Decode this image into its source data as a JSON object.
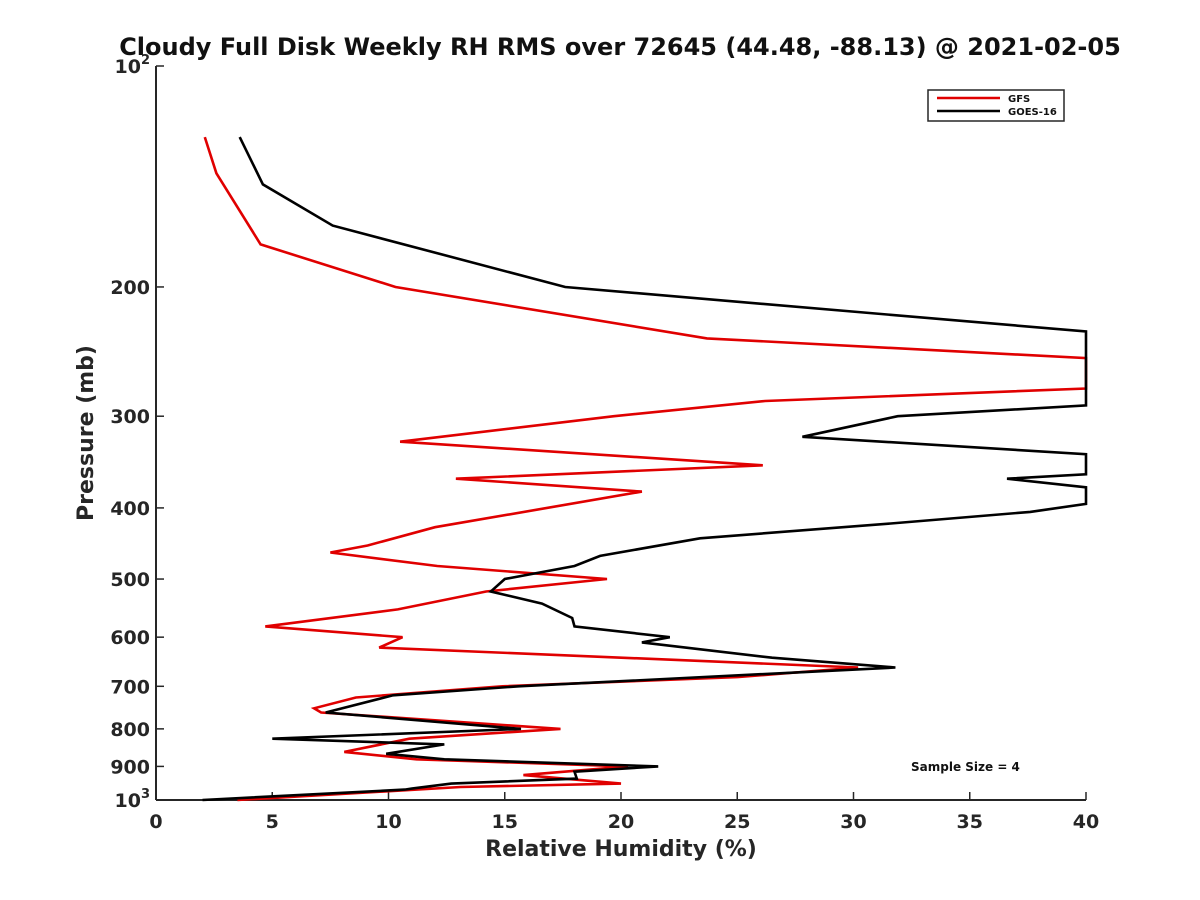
{
  "chart_data": {
    "type": "line",
    "title": "Cloudy Full Disk Weekly RH RMS over 72645 (44.48, -88.13) @ 2021-02-05",
    "xlabel": "Relative Humidity (%)",
    "ylabel": "Pressure (mb)",
    "xlim": [
      0,
      40
    ],
    "ylim": [
      100,
      1000
    ],
    "y_scale": "log",
    "y_reversed": true,
    "x_ticks": [
      "0",
      "5",
      "10",
      "15",
      "20",
      "25",
      "30",
      "35",
      "40"
    ],
    "y_ticks": [
      {
        "value": 100,
        "base": "10",
        "exp": "2"
      },
      {
        "value": 200,
        "label": "200"
      },
      {
        "value": 300,
        "label": "300"
      },
      {
        "value": 400,
        "label": "400"
      },
      {
        "value": 500,
        "label": "500"
      },
      {
        "value": 600,
        "label": "600"
      },
      {
        "value": 700,
        "label": "700"
      },
      {
        "value": 800,
        "label": "800"
      },
      {
        "value": 900,
        "label": "900"
      },
      {
        "value": 1000,
        "base": "10",
        "exp": "3"
      }
    ],
    "legend_position": "top-right",
    "grid": false,
    "annotation": "Sample Size = 4",
    "series": [
      {
        "name": "GFS",
        "color": "#e00000",
        "points": [
          [
            2.1,
            125
          ],
          [
            2.6,
            140
          ],
          [
            4.5,
            175
          ],
          [
            10.3,
            200
          ],
          [
            23.7,
            235
          ],
          [
            40,
            250
          ],
          [
            40,
            275
          ],
          [
            26.2,
            286
          ],
          [
            19.7,
            300
          ],
          [
            10.5,
            325
          ],
          [
            26.1,
            350
          ],
          [
            12.9,
            365
          ],
          [
            20.9,
            380
          ],
          [
            12.0,
            425
          ],
          [
            9.1,
            450
          ],
          [
            7.5,
            460
          ],
          [
            12.1,
            480
          ],
          [
            19.4,
            500
          ],
          [
            14.2,
            520
          ],
          [
            10.4,
            550
          ],
          [
            4.7,
            580
          ],
          [
            10.6,
            600
          ],
          [
            9.6,
            620
          ],
          [
            30.2,
            660
          ],
          [
            25.0,
            680
          ],
          [
            14.9,
            700
          ],
          [
            8.6,
            725
          ],
          [
            6.8,
            750
          ],
          [
            7.1,
            760
          ],
          [
            17.4,
            800
          ],
          [
            10.9,
            825
          ],
          [
            8.1,
            860
          ],
          [
            11.2,
            880
          ],
          [
            20.3,
            900
          ],
          [
            15.8,
            925
          ],
          [
            20.0,
            950
          ],
          [
            13.1,
            960
          ],
          [
            3.5,
            1000
          ]
        ]
      },
      {
        "name": "GOES-16",
        "color": "#000000",
        "points": [
          [
            3.6,
            125
          ],
          [
            4.6,
            145
          ],
          [
            7.6,
            165
          ],
          [
            17.6,
            200
          ],
          [
            40,
            230
          ],
          [
            40,
            290
          ],
          [
            31.9,
            300
          ],
          [
            27.8,
            320
          ],
          [
            40,
            338
          ],
          [
            40,
            360
          ],
          [
            36.6,
            365
          ],
          [
            40,
            375
          ],
          [
            40,
            395
          ],
          [
            37.6,
            405
          ],
          [
            31.6,
            420
          ],
          [
            23.4,
            440
          ],
          [
            19.1,
            465
          ],
          [
            18.0,
            480
          ],
          [
            15.0,
            500
          ],
          [
            14.4,
            520
          ],
          [
            16.6,
            540
          ],
          [
            17.9,
            565
          ],
          [
            18.0,
            580
          ],
          [
            22.1,
            600
          ],
          [
            20.9,
            610
          ],
          [
            26.5,
            640
          ],
          [
            31.8,
            660
          ],
          [
            15.6,
            700
          ],
          [
            10.2,
            720
          ],
          [
            7.3,
            760
          ],
          [
            15.7,
            800
          ],
          [
            5.0,
            825
          ],
          [
            12.4,
            840
          ],
          [
            9.9,
            865
          ],
          [
            12.4,
            880
          ],
          [
            21.6,
            900
          ],
          [
            18.0,
            915
          ],
          [
            18.1,
            935
          ],
          [
            12.7,
            950
          ],
          [
            11.0,
            965
          ],
          [
            10.7,
            968
          ],
          [
            2.0,
            1000
          ]
        ]
      }
    ]
  }
}
